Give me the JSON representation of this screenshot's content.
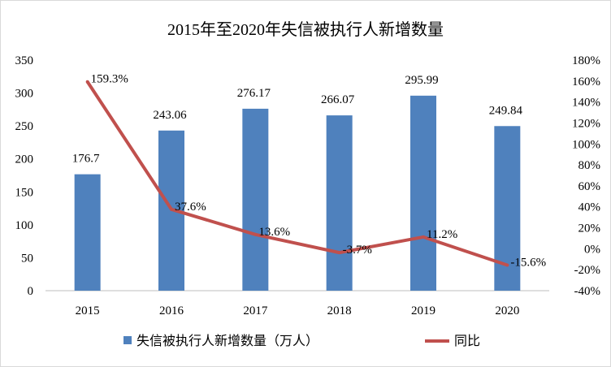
{
  "chart_data": {
    "type": "bar",
    "title": "2015年至2020年失信被执行人新增数量",
    "categories": [
      "2015",
      "2016",
      "2017",
      "2018",
      "2019",
      "2020"
    ],
    "series": [
      {
        "name": "失信被执行人新增数量（万人）",
        "type": "bar",
        "axis": "left",
        "color": "#4f81bd",
        "values": [
          176.7,
          243.06,
          276.17,
          266.07,
          295.99,
          249.84
        ],
        "labels": [
          "176.7",
          "243.06",
          "276.17",
          "266.07",
          "295.99",
          "249.84"
        ]
      },
      {
        "name": "同比",
        "type": "line",
        "axis": "right",
        "color": "#c0504d",
        "values": [
          159.3,
          37.6,
          13.6,
          -3.7,
          11.2,
          -15.6
        ],
        "labels": [
          "159.3%",
          "37.6%",
          "13.6%",
          "-3.7%",
          "11.2%",
          "-15.6%"
        ]
      }
    ],
    "y_left": {
      "min": 0,
      "max": 350,
      "step": 50,
      "ticks": [
        "0",
        "50",
        "100",
        "150",
        "200",
        "250",
        "300",
        "350"
      ]
    },
    "y_right": {
      "min": -40,
      "max": 180,
      "step": 20,
      "ticks": [
        "-40%",
        "-20%",
        "0%",
        "20%",
        "40%",
        "60%",
        "80%",
        "100%",
        "120%",
        "140%",
        "160%",
        "180%"
      ]
    },
    "grid": false,
    "legend_position": "bottom"
  }
}
